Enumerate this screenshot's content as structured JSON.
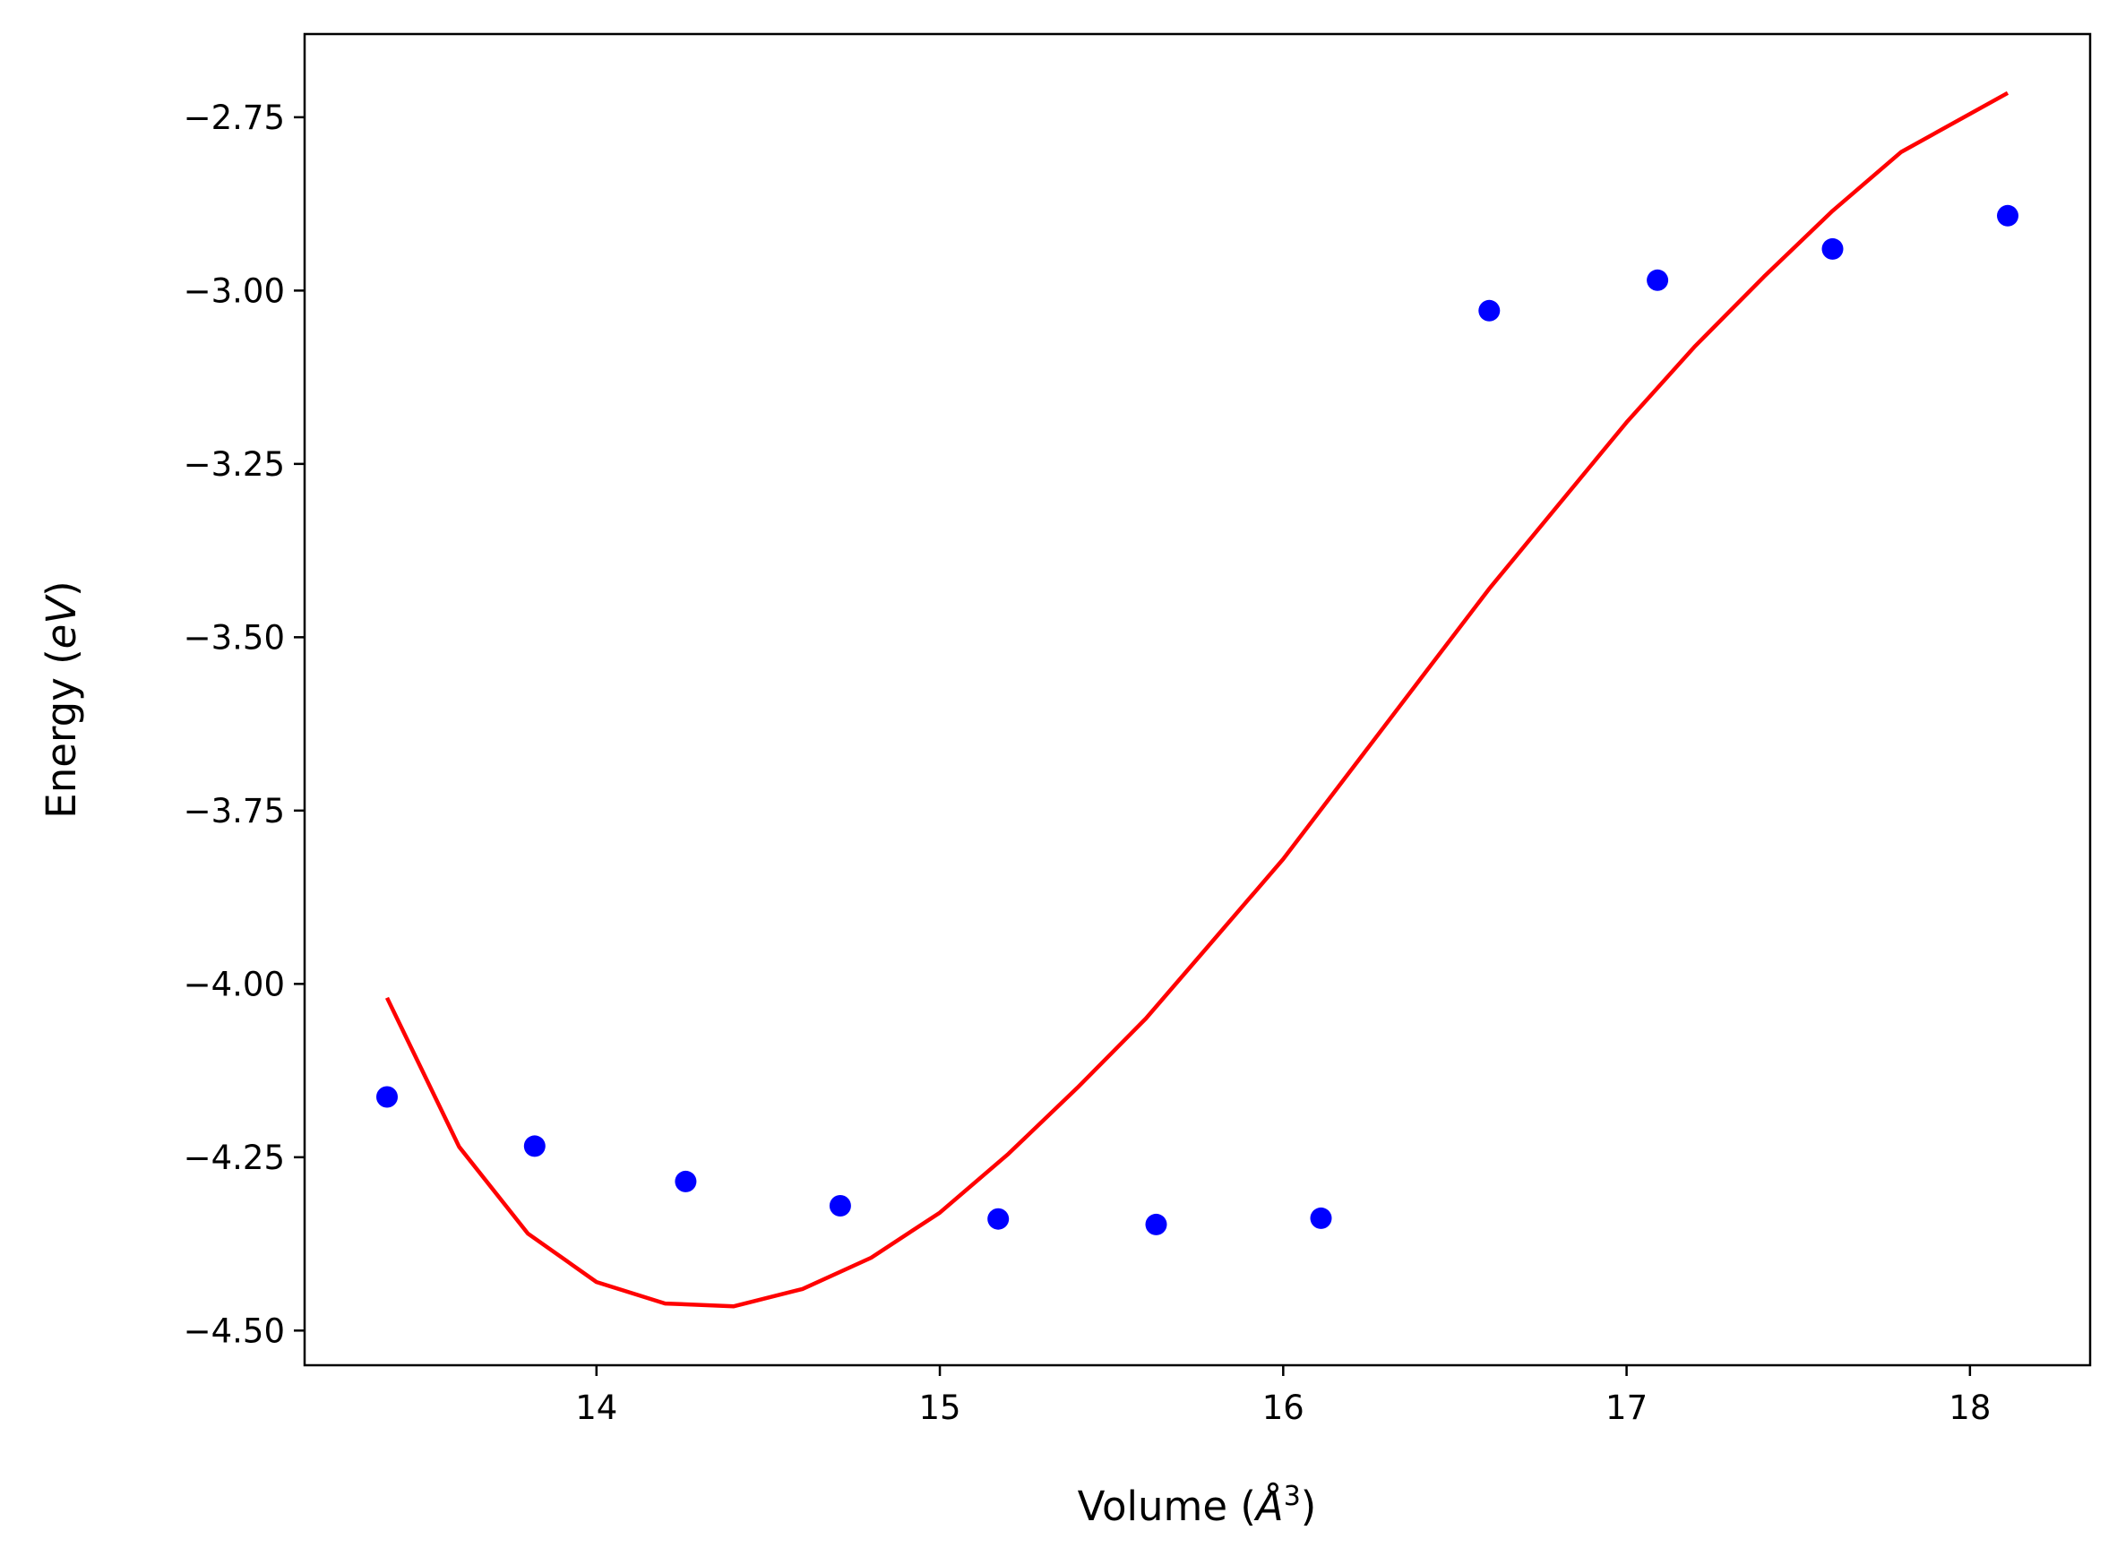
{
  "chart_data": {
    "type": "scatter",
    "xlabel": {
      "prefix": "Volume (",
      "symbol": "Å",
      "sup": "3",
      "suffix": ")"
    },
    "ylabel": {
      "prefix": "Energy (",
      "unit": "eV",
      "suffix": ")"
    },
    "xlim": [
      13.15,
      18.35
    ],
    "ylim": [
      -4.55,
      -2.63
    ],
    "x_ticks": [
      14,
      15,
      16,
      17,
      18
    ],
    "x_tick_labels": [
      "14",
      "15",
      "16",
      "17",
      "18"
    ],
    "y_ticks": [
      -2.75,
      -3.0,
      -3.25,
      -3.5,
      -3.75,
      -4.0,
      -4.25,
      -4.5
    ],
    "y_tick_labels": [
      "−2.75",
      "−3.00",
      "−3.25",
      "−3.50",
      "−3.75",
      "−4.00",
      "−4.25",
      "−4.50"
    ],
    "grid": false,
    "legend": "none",
    "series": [
      {
        "kind": "points",
        "color": "#0000ff",
        "marker": "circle",
        "x": [
          13.39,
          13.82,
          14.26,
          14.71,
          15.17,
          15.63,
          16.11,
          16.6,
          17.09,
          17.6,
          18.11
        ],
        "y": [
          -4.163,
          -4.234,
          -4.285,
          -4.32,
          -4.339,
          -4.347,
          -4.338,
          -3.029,
          -2.985,
          -2.94,
          -2.892
        ]
      },
      {
        "kind": "line",
        "color": "#ff0000",
        "x": [
          13.39,
          13.6,
          13.8,
          14.0,
          14.2,
          14.4,
          14.6,
          14.8,
          15.0,
          15.2,
          15.4,
          15.6,
          15.8,
          16.0,
          16.2,
          16.4,
          16.6,
          16.8,
          17.0,
          17.2,
          17.4,
          17.6,
          17.8,
          18.11
        ],
        "y": [
          -4.02,
          -4.235,
          -4.36,
          -4.43,
          -4.461,
          -4.465,
          -4.44,
          -4.395,
          -4.33,
          -4.245,
          -4.15,
          -4.05,
          -3.935,
          -3.82,
          -3.69,
          -3.56,
          -3.43,
          -3.31,
          -3.19,
          -3.08,
          -2.98,
          -2.885,
          -2.8,
          -2.715
        ]
      }
    ]
  }
}
